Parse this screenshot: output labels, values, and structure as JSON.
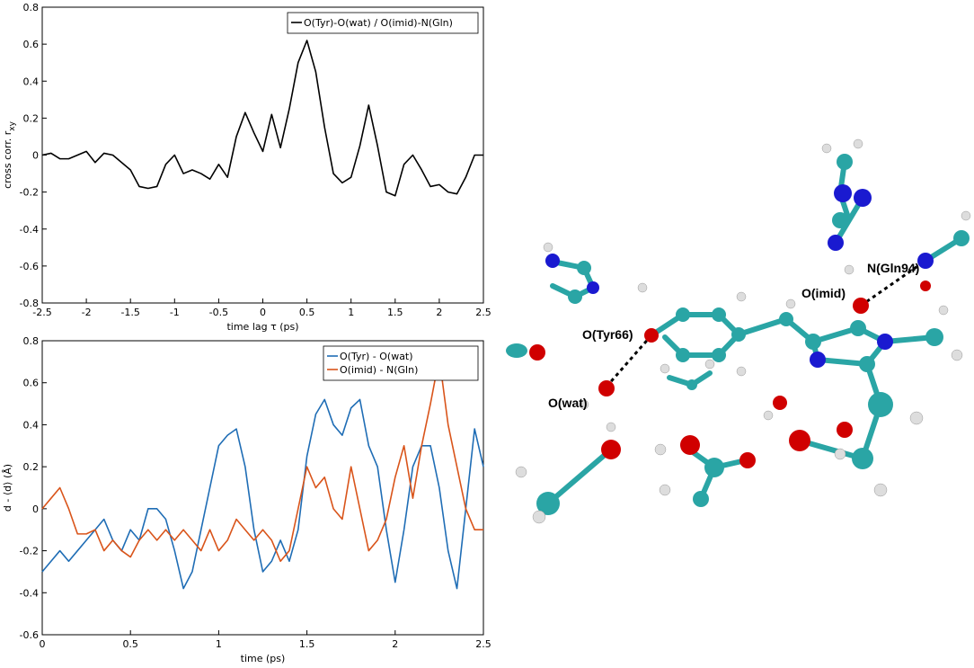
{
  "chart_data": [
    {
      "type": "line",
      "ylabel": "cross corr. r",
      "ylabel_subscript": "xy",
      "xlabel": "time lag τ (ps)",
      "xlim": [
        -2.5,
        2.5
      ],
      "xticks": [
        -2.5,
        -2,
        -1.5,
        -1,
        -0.5,
        0,
        0.5,
        1,
        1.5,
        2,
        2.5
      ],
      "ylim": [
        -0.8,
        0.8
      ],
      "yticks": [
        -0.8,
        -0.6,
        -0.4,
        -0.2,
        0,
        0.2,
        0.4,
        0.6,
        0.8
      ],
      "legend": "upper right",
      "x": [
        -2.5,
        -2.4,
        -2.3,
        -2.2,
        -2.1,
        -2,
        -1.9,
        -1.8,
        -1.7,
        -1.6,
        -1.5,
        -1.4,
        -1.3,
        -1.2,
        -1.1,
        -1,
        -0.9,
        -0.8,
        -0.7,
        -0.6,
        -0.5,
        -0.4,
        -0.3,
        -0.2,
        -0.1,
        0,
        0.1,
        0.2,
        0.3,
        0.4,
        0.5,
        0.6,
        0.7,
        0.8,
        0.9,
        1,
        1.1,
        1.2,
        1.3,
        1.4,
        1.5,
        1.6,
        1.7,
        1.8,
        1.9,
        2,
        2.1,
        2.2,
        2.3,
        2.4,
        2.5
      ],
      "series": [
        {
          "name": "O(Tyr)-O(wat) / O(imid)-N(Gln)",
          "color": "#000000",
          "values": [
            0,
            0.01,
            -0.02,
            -0.02,
            0,
            0.02,
            -0.04,
            0.01,
            0,
            -0.04,
            -0.08,
            -0.17,
            -0.18,
            -0.17,
            -0.05,
            0,
            -0.1,
            -0.08,
            -0.1,
            -0.13,
            -0.05,
            -0.12,
            0.1,
            0.23,
            0.12,
            0.02,
            0.22,
            0.04,
            0.25,
            0.5,
            0.62,
            0.45,
            0.15,
            -0.1,
            -0.15,
            -0.12,
            0.05,
            0.27,
            0.05,
            -0.2,
            -0.22,
            -0.05,
            0,
            -0.08,
            -0.17,
            -0.16,
            -0.2,
            -0.21,
            -0.12,
            0,
            0
          ]
        }
      ]
    },
    {
      "type": "line",
      "ylabel": "d - ⟨d⟩ (Å)",
      "xlabel": "time (ps)",
      "xlim": [
        0,
        2.5
      ],
      "xticks": [
        0,
        0.5,
        1,
        1.5,
        2,
        2.5
      ],
      "ylim": [
        -0.6,
        0.8
      ],
      "yticks": [
        -0.6,
        -0.4,
        -0.2,
        0,
        0.2,
        0.4,
        0.6,
        0.8
      ],
      "legend": "upper right",
      "x": [
        0,
        0.05,
        0.1,
        0.15,
        0.2,
        0.25,
        0.3,
        0.35,
        0.4,
        0.45,
        0.5,
        0.55,
        0.6,
        0.65,
        0.7,
        0.75,
        0.8,
        0.85,
        0.9,
        0.95,
        1,
        1.05,
        1.1,
        1.15,
        1.2,
        1.25,
        1.3,
        1.35,
        1.4,
        1.45,
        1.5,
        1.55,
        1.6,
        1.65,
        1.7,
        1.75,
        1.8,
        1.85,
        1.9,
        1.95,
        2,
        2.05,
        2.1,
        2.15,
        2.2,
        2.25,
        2.3,
        2.35,
        2.4,
        2.45,
        2.5
      ],
      "series": [
        {
          "name": "O(Tyr) - O(wat)",
          "color": "#1f6db5",
          "values": [
            -0.3,
            -0.25,
            -0.2,
            -0.25,
            -0.2,
            -0.15,
            -0.1,
            -0.05,
            -0.15,
            -0.2,
            -0.1,
            -0.15,
            0,
            0,
            -0.05,
            -0.2,
            -0.38,
            -0.3,
            -0.1,
            0.1,
            0.3,
            0.35,
            0.38,
            0.2,
            -0.1,
            -0.3,
            -0.25,
            -0.15,
            -0.25,
            -0.1,
            0.25,
            0.45,
            0.52,
            0.4,
            0.35,
            0.48,
            0.52,
            0.3,
            0.2,
            -0.1,
            -0.35,
            -0.1,
            0.2,
            0.3,
            0.3,
            0.1,
            -0.2,
            -0.38,
            0,
            0.38,
            0.2
          ]
        },
        {
          "name": "O(imid) - N(Gln)",
          "color": "#d9541a",
          "values": [
            0,
            0.05,
            0.1,
            0,
            -0.12,
            -0.12,
            -0.1,
            -0.2,
            -0.15,
            -0.2,
            -0.23,
            -0.15,
            -0.1,
            -0.15,
            -0.1,
            -0.15,
            -0.1,
            -0.15,
            -0.2,
            -0.1,
            -0.2,
            -0.15,
            -0.05,
            -0.1,
            -0.15,
            -0.1,
            -0.15,
            -0.25,
            -0.2,
            0,
            0.2,
            0.1,
            0.15,
            0,
            -0.05,
            0.2,
            0,
            -0.2,
            -0.15,
            -0.05,
            0.15,
            0.3,
            0.05,
            0.3,
            0.5,
            0.72,
            0.4,
            0.2,
            0,
            -0.1,
            -0.1
          ]
        }
      ]
    }
  ],
  "molecule": {
    "labels": [
      "O(Tyr66)",
      "O(wat)",
      "O(imid)",
      "N(Gln94)"
    ]
  }
}
